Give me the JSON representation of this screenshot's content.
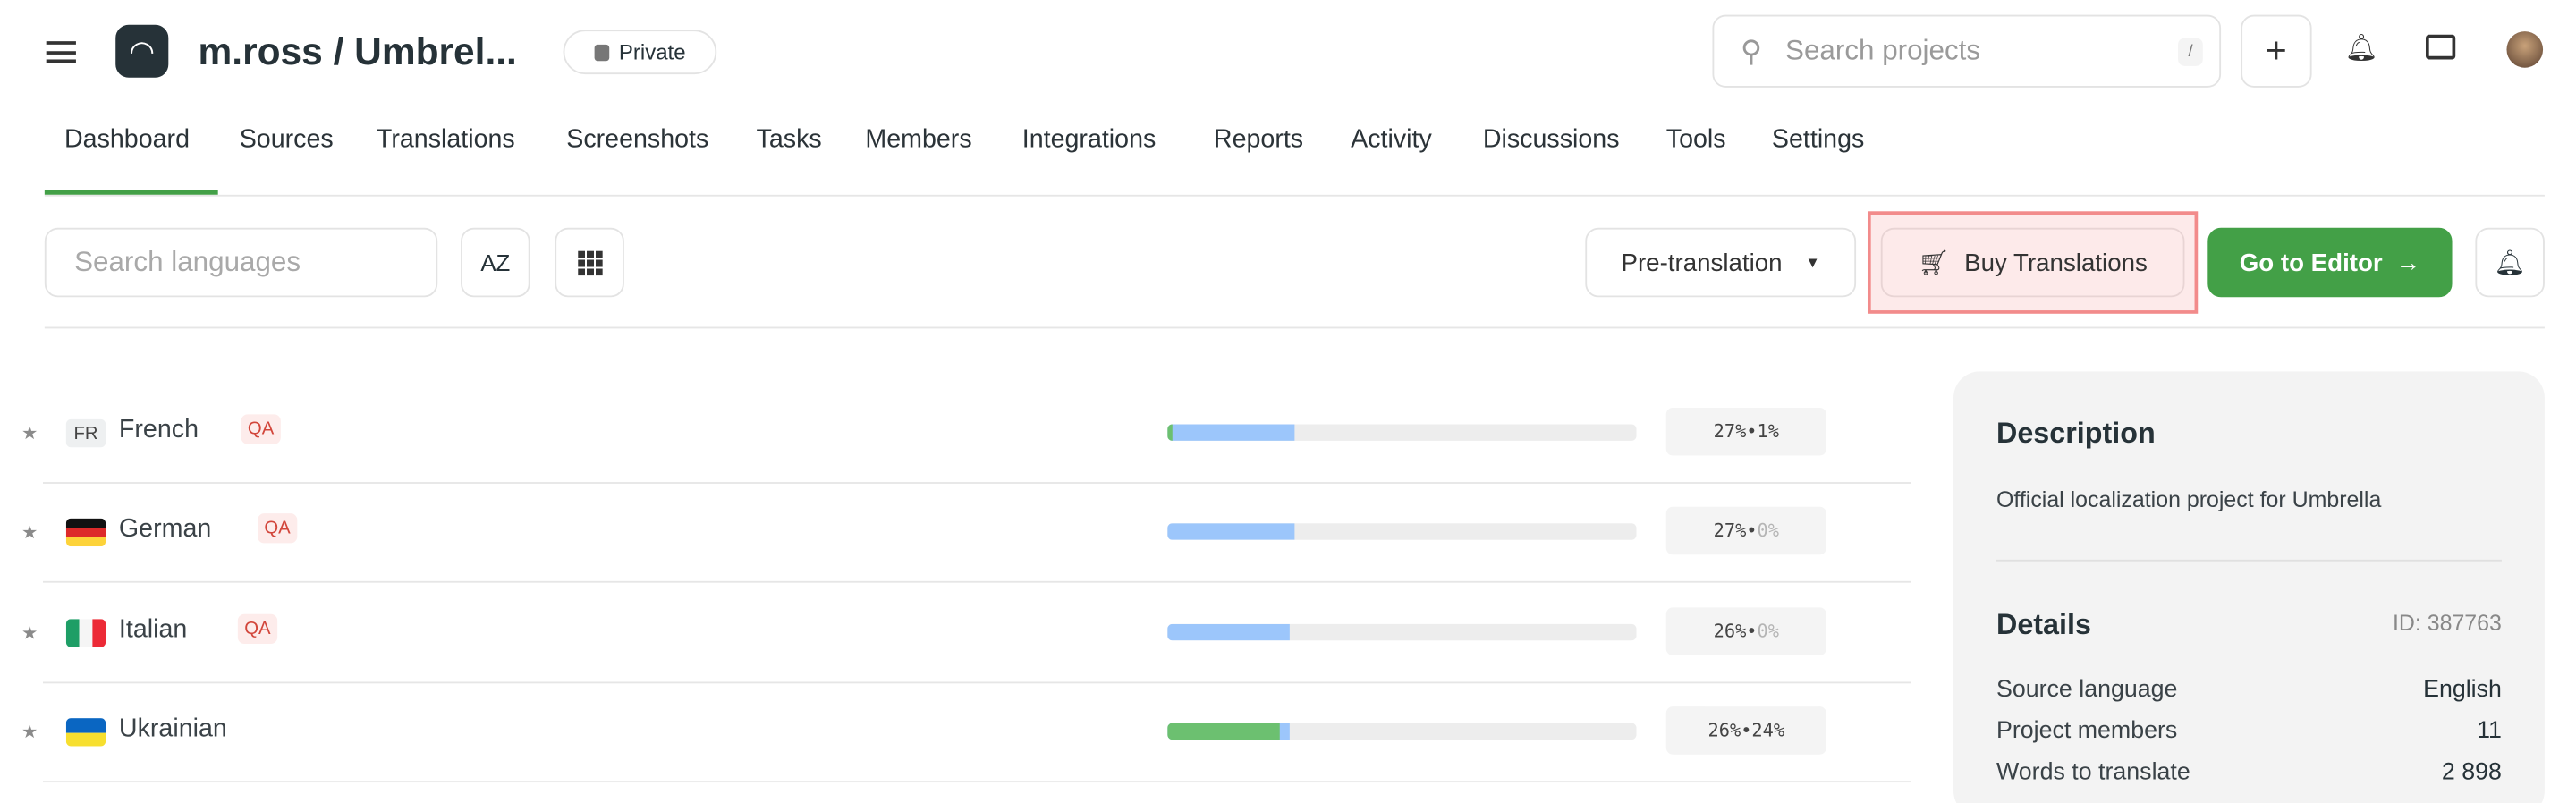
{
  "header": {
    "title": "m.ross / Umbrel...",
    "privacy": "Private",
    "search_placeholder": "Search projects",
    "search_shortcut": "/"
  },
  "tabs": [
    {
      "label": "Dashboard",
      "active": true
    },
    {
      "label": "Sources"
    },
    {
      "label": "Translations"
    },
    {
      "label": "Screenshots"
    },
    {
      "label": "Tasks"
    },
    {
      "label": "Members"
    },
    {
      "label": "Integrations"
    },
    {
      "label": "Reports"
    },
    {
      "label": "Activity"
    },
    {
      "label": "Discussions"
    },
    {
      "label": "Tools"
    },
    {
      "label": "Settings"
    }
  ],
  "toolbar": {
    "search_placeholder": "Search languages",
    "sort_label": "AZ",
    "pretranslation": "Pre-translation",
    "buy": "Buy Translations",
    "editor": "Go to Editor"
  },
  "colors": {
    "accent": "#43a047",
    "translated": "#9cc6fb",
    "approved": "#6cc070",
    "qa": "#d2463b",
    "highlight": "#f28b8b"
  },
  "languages": [
    {
      "code": "FR",
      "name": "French",
      "qa": "QA",
      "translated": 27,
      "approved": 1,
      "translated_label": "27%",
      "approved_label": "1%"
    },
    {
      "code": "DE",
      "name": "German",
      "qa": "QA",
      "translated": 27,
      "approved": 0,
      "translated_label": "27%",
      "approved_label": "0%"
    },
    {
      "code": "IT",
      "name": "Italian",
      "qa": "QA",
      "translated": 26,
      "approved": 0,
      "translated_label": "26%",
      "approved_label": "0%"
    },
    {
      "code": "UK",
      "name": "Ukrainian",
      "qa": "",
      "translated": 26,
      "approved": 24,
      "translated_label": "26%",
      "approved_label": "24%"
    }
  ],
  "panel": {
    "description_title": "Description",
    "description": "Official localization project for Umbrella",
    "details_title": "Details",
    "id": "ID: 387763",
    "details": [
      {
        "label": "Source language",
        "value": "English"
      },
      {
        "label": "Project members",
        "value": "11"
      },
      {
        "label": "Words to translate",
        "value": "2 898"
      }
    ]
  }
}
